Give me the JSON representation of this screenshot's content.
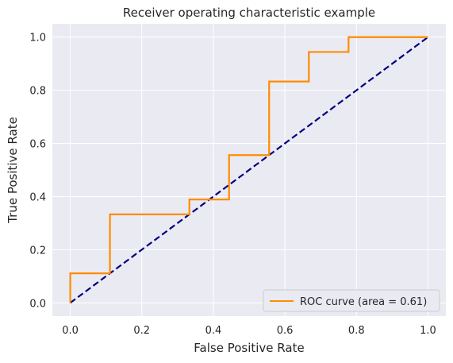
{
  "chart_data": {
    "type": "line",
    "title": "Receiver operating characteristic example",
    "xlabel": "False Positive Rate",
    "ylabel": "True Positive Rate",
    "xlim": [
      -0.05,
      1.05
    ],
    "ylim": [
      -0.05,
      1.05
    ],
    "x_ticks": [
      0.0,
      0.2,
      0.4,
      0.6,
      0.8,
      1.0
    ],
    "y_ticks": [
      0.0,
      0.2,
      0.4,
      0.6,
      0.8,
      1.0
    ],
    "x_tick_labels": [
      "0.0",
      "0.2",
      "0.4",
      "0.6",
      "0.8",
      "1.0"
    ],
    "y_tick_labels": [
      "0.0",
      "0.2",
      "0.4",
      "0.6",
      "0.8",
      "1.0"
    ],
    "grid": true,
    "legend_position": "lower right",
    "series": [
      {
        "name": "ROC curve (area = 0.61)",
        "color": "#ff8c00",
        "style": "solid",
        "x": [
          0.0,
          0.0,
          0.111,
          0.111,
          0.333,
          0.333,
          0.444,
          0.444,
          0.556,
          0.556,
          0.667,
          0.667,
          0.778,
          0.778,
          1.0
        ],
        "y": [
          0.0,
          0.111,
          0.111,
          0.333,
          0.333,
          0.389,
          0.389,
          0.556,
          0.556,
          0.833,
          0.833,
          0.944,
          0.944,
          1.0,
          1.0
        ]
      },
      {
        "color": "#000080",
        "style": "dashed",
        "x": [
          0.0,
          1.0
        ],
        "y": [
          0.0,
          1.0
        ]
      }
    ]
  },
  "colors": {
    "plot_background": "#eaeaf2",
    "grid": "#ffffff",
    "text": "#262626"
  }
}
